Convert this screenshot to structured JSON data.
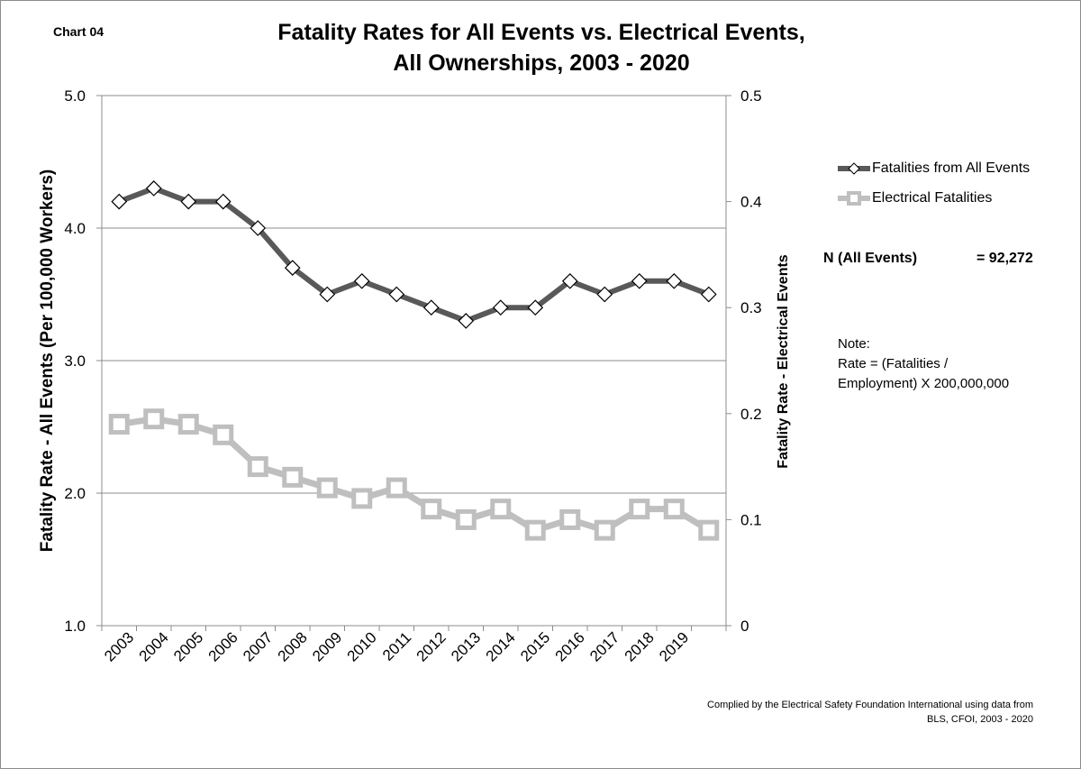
{
  "chart_label": "Chart 04",
  "title_lines": [
    "Fatality Rates for All Events vs. Electrical Events,",
    "All Ownerships, 2003 - 2020"
  ],
  "n_info": {
    "label": "N (All Events)",
    "value": "= 92,272"
  },
  "note": {
    "lines": [
      "Note:",
      "Rate = (Fatalities /",
      "Employment) X 200,000,000"
    ]
  },
  "credit": {
    "lines": [
      "Complied by the Electrical Safety Foundation International using data from",
      "BLS, CFOI, 2003 - 2020"
    ]
  },
  "colors": {
    "all_events": "#595959",
    "electrical": "#bfbfbf",
    "gridline": "#8c8c8c"
  },
  "chart_data": {
    "type": "line",
    "categories": [
      "2003",
      "2004",
      "2005",
      "2006",
      "2007",
      "2008",
      "2009",
      "2010",
      "2011",
      "2012",
      "2013",
      "2014",
      "2015",
      "2016",
      "2017",
      "2018",
      "2019",
      ""
    ],
    "series": [
      {
        "name": "Fatalities from All Events",
        "axis": "left",
        "marker": "diamond",
        "values": [
          4.2,
          4.3,
          4.2,
          4.2,
          4.0,
          3.7,
          3.5,
          3.6,
          3.5,
          3.4,
          3.3,
          3.4,
          3.4,
          3.6,
          3.5,
          3.6,
          3.6,
          3.5
        ]
      },
      {
        "name": "Electrical Fatalities",
        "axis": "right",
        "marker": "square",
        "values": [
          0.19,
          0.195,
          0.19,
          0.18,
          0.15,
          0.14,
          0.13,
          0.12,
          0.13,
          0.11,
          0.1,
          0.11,
          0.09,
          0.1,
          0.09,
          0.11,
          0.11,
          0.09
        ]
      }
    ],
    "ylabel_left": "Fatality Rate - All Events (Per 100,000 Workers)",
    "ylabel_right": "Fatality Rate - Electrical Events",
    "ylim_left": [
      1.0,
      5.0
    ],
    "yticks_left": [
      "1.0",
      "2.0",
      "3.0",
      "4.0",
      "5.0"
    ],
    "ylim_right": [
      0,
      0.5
    ],
    "yticks_right": [
      "0",
      "0.1",
      "0.2",
      "0.3",
      "0.4",
      "0.5"
    ],
    "grid": true,
    "legend_position": "right"
  }
}
